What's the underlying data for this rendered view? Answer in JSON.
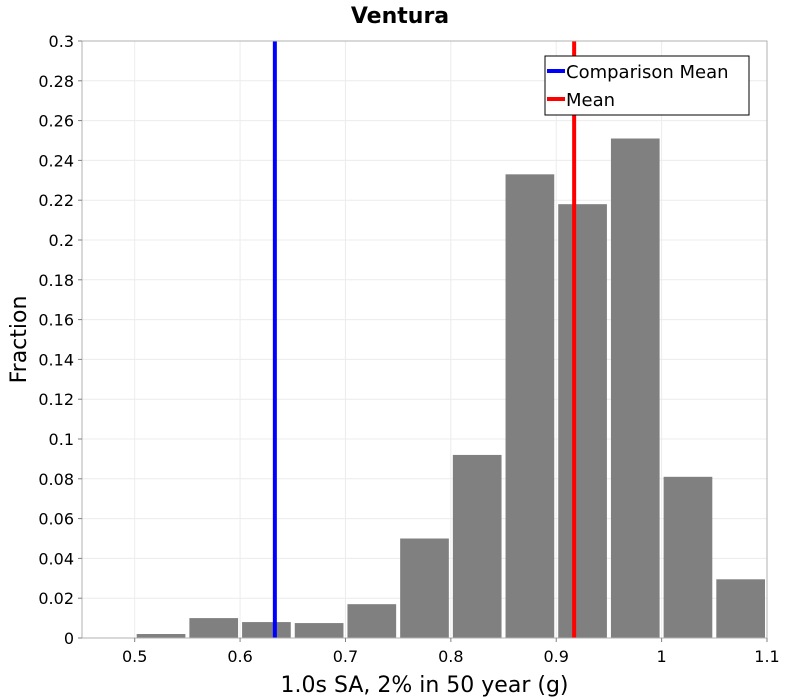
{
  "chart_data": {
    "type": "bar",
    "title": "Ventura",
    "xlabel": "1.0s SA, 2% in 50 year (g)",
    "ylabel": "Fraction",
    "xlim": [
      0.45,
      1.1
    ],
    "ylim": [
      0,
      0.3
    ],
    "xticks": [
      "0.5",
      "0.6",
      "0.7",
      "0.8",
      "0.9",
      "1",
      "1.1"
    ],
    "yticks": [
      "0",
      "0.02",
      "0.04",
      "0.06",
      "0.08",
      "0.1",
      "0.12",
      "0.14",
      "0.16",
      "0.18",
      "0.2",
      "0.22",
      "0.24",
      "0.26",
      "0.28",
      "0.3"
    ],
    "grid": true,
    "bin_width": 0.05,
    "bins": [
      {
        "x": 0.525,
        "value": 0.002
      },
      {
        "x": 0.575,
        "value": 0.01
      },
      {
        "x": 0.625,
        "value": 0.008
      },
      {
        "x": 0.675,
        "value": 0.0075
      },
      {
        "x": 0.725,
        "value": 0.017
      },
      {
        "x": 0.775,
        "value": 0.05
      },
      {
        "x": 0.825,
        "value": 0.092
      },
      {
        "x": 0.875,
        "value": 0.233
      },
      {
        "x": 0.925,
        "value": 0.218
      },
      {
        "x": 0.975,
        "value": 0.251
      },
      {
        "x": 1.025,
        "value": 0.081
      },
      {
        "x": 1.075,
        "value": 0.0295
      }
    ],
    "lines": [
      {
        "name": "Comparison Mean",
        "x": 0.633,
        "color": "#0000ff"
      },
      {
        "name": "Mean",
        "x": 0.917,
        "color": "#ff0000"
      }
    ],
    "legend_position": "top-right"
  }
}
